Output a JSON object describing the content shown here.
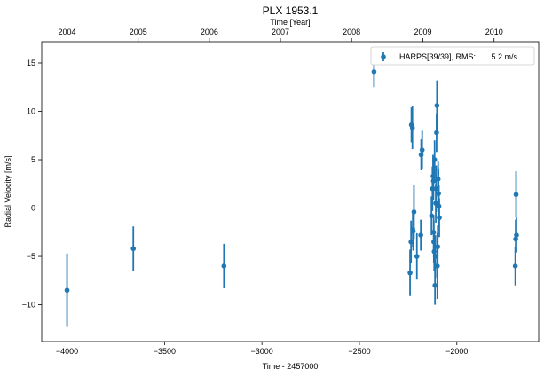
{
  "chart_data": {
    "type": "scatter",
    "title": "PLX 1953.1",
    "xlabel": "Time - 2457000",
    "ylabel": "Radial Velocity [m/s]",
    "top_xlabel": "Time [Year]",
    "xlim": [
      -4130,
      -1580
    ],
    "ylim": [
      -13.8,
      17.2
    ],
    "xticks": [
      -4000,
      -3500,
      -3000,
      -2500,
      -2000
    ],
    "xtick_labels": [
      "−4000",
      "−3500",
      "−3000",
      "−2500",
      "−2000"
    ],
    "yticks": [
      -10,
      -5,
      0,
      5,
      10,
      15
    ],
    "ytick_labels": [
      "−10",
      "−5",
      "0",
      "5",
      "10",
      "15"
    ],
    "top_ticks": [
      {
        "label": "2004",
        "x": -4000
      },
      {
        "label": "2005",
        "x": -3635
      },
      {
        "label": "2006",
        "x": -3270
      },
      {
        "label": "2007",
        "x": -2905
      },
      {
        "label": "2008",
        "x": -2540
      },
      {
        "label": "2009",
        "x": -2174
      },
      {
        "label": "2010",
        "x": -1809
      }
    ],
    "color": "#1f77b4",
    "grid": false,
    "legend_position": "top-right",
    "series": [
      {
        "name": "HARPS[39/39], RMS:       5.2 m/s",
        "points": [
          {
            "x": -4000,
            "y": -8.5,
            "err": 3.8
          },
          {
            "x": -3660,
            "y": -4.2,
            "err": 2.3
          },
          {
            "x": -3195,
            "y": -6.0,
            "err": 2.3
          },
          {
            "x": -2425,
            "y": 14.1,
            "err": 1.6
          },
          {
            "x": -2240,
            "y": -6.7,
            "err": 2.4
          },
          {
            "x": -2235,
            "y": -3.5,
            "err": 2.2
          },
          {
            "x": -2233,
            "y": 8.6,
            "err": 1.8
          },
          {
            "x": -2228,
            "y": 8.3,
            "err": 2.2
          },
          {
            "x": -2224,
            "y": -2.4,
            "err": 2.0
          },
          {
            "x": -2220,
            "y": -0.4,
            "err": 2.8
          },
          {
            "x": -2205,
            "y": -5.0,
            "err": 2.4
          },
          {
            "x": -2185,
            "y": -2.8,
            "err": 1.6
          },
          {
            "x": -2183,
            "y": 5.5,
            "err": 1.6
          },
          {
            "x": -2178,
            "y": 6.0,
            "err": 2.0
          },
          {
            "x": -2130,
            "y": -0.8,
            "err": 2.0
          },
          {
            "x": -2125,
            "y": 2.0,
            "err": 2.3
          },
          {
            "x": -2122,
            "y": 3.3,
            "err": 2.2
          },
          {
            "x": -2120,
            "y": 2.8,
            "err": 2.0
          },
          {
            "x": -2118,
            "y": -3.5,
            "err": 2.2
          },
          {
            "x": -2116,
            "y": -4.5,
            "err": 2.0
          },
          {
            "x": -2114,
            "y": 5.0,
            "err": 2.0
          },
          {
            "x": -2112,
            "y": -8.0,
            "err": 2.0
          },
          {
            "x": -2110,
            "y": -5.0,
            "err": 2.2
          },
          {
            "x": -2108,
            "y": 0.5,
            "err": 2.0
          },
          {
            "x": -2106,
            "y": 2.0,
            "err": 2.4
          },
          {
            "x": -2104,
            "y": 7.8,
            "err": 2.0
          },
          {
            "x": -2102,
            "y": 10.6,
            "err": 2.6
          },
          {
            "x": -2100,
            "y": -6.0,
            "err": 3.4
          },
          {
            "x": -2098,
            "y": -4.0,
            "err": 2.2
          },
          {
            "x": -2096,
            "y": 3.0,
            "err": 1.8
          },
          {
            "x": -2094,
            "y": 1.5,
            "err": 2.6
          },
          {
            "x": -2092,
            "y": 0.2,
            "err": 2.2
          },
          {
            "x": -2090,
            "y": -1.0,
            "err": 2.0
          },
          {
            "x": -1700,
            "y": -6.0,
            "err": 2.0
          },
          {
            "x": -1698,
            "y": -3.2,
            "err": 2.0
          },
          {
            "x": -1696,
            "y": 1.4,
            "err": 2.4
          },
          {
            "x": -1694,
            "y": -2.8,
            "err": 1.8
          },
          {
            "x": -2226,
            "y": -2.2,
            "err": 1.8
          },
          {
            "x": -2119,
            "y": -2.5,
            "err": 1.8
          }
        ]
      }
    ]
  }
}
